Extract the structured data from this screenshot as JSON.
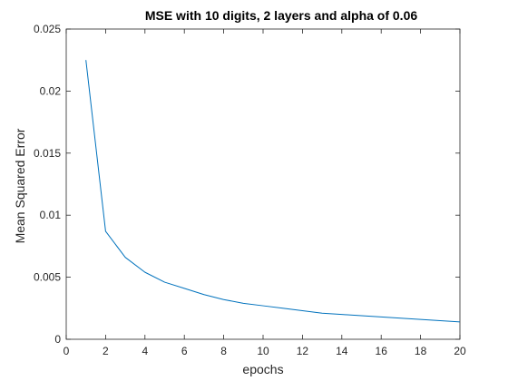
{
  "chart_data": {
    "type": "line",
    "title": "MSE with 10 digits, 2 layers and alpha of 0.06",
    "xlabel": "epochs",
    "ylabel": "Mean Squared Error",
    "xlim": [
      0,
      20
    ],
    "ylim": [
      0,
      0.025
    ],
    "xticks": [
      "0",
      "2",
      "4",
      "6",
      "8",
      "10",
      "12",
      "14",
      "16",
      "18",
      "20"
    ],
    "yticks": [
      "0",
      "0.005",
      "0.01",
      "0.015",
      "0.02",
      "0.025"
    ],
    "grid": false,
    "line_color": "#0072BD",
    "series": [
      {
        "x": [
          1,
          2,
          3,
          4,
          5,
          6,
          7,
          8,
          9,
          10,
          11,
          12,
          13,
          14,
          15,
          16,
          17,
          18,
          19,
          20
        ],
        "values": [
          0.0225,
          0.0087,
          0.0066,
          0.0054,
          0.0046,
          0.0041,
          0.0036,
          0.0032,
          0.0029,
          0.0027,
          0.0025,
          0.0023,
          0.0021,
          0.002,
          0.0019,
          0.0018,
          0.0017,
          0.0016,
          0.0015,
          0.0014
        ]
      }
    ]
  }
}
